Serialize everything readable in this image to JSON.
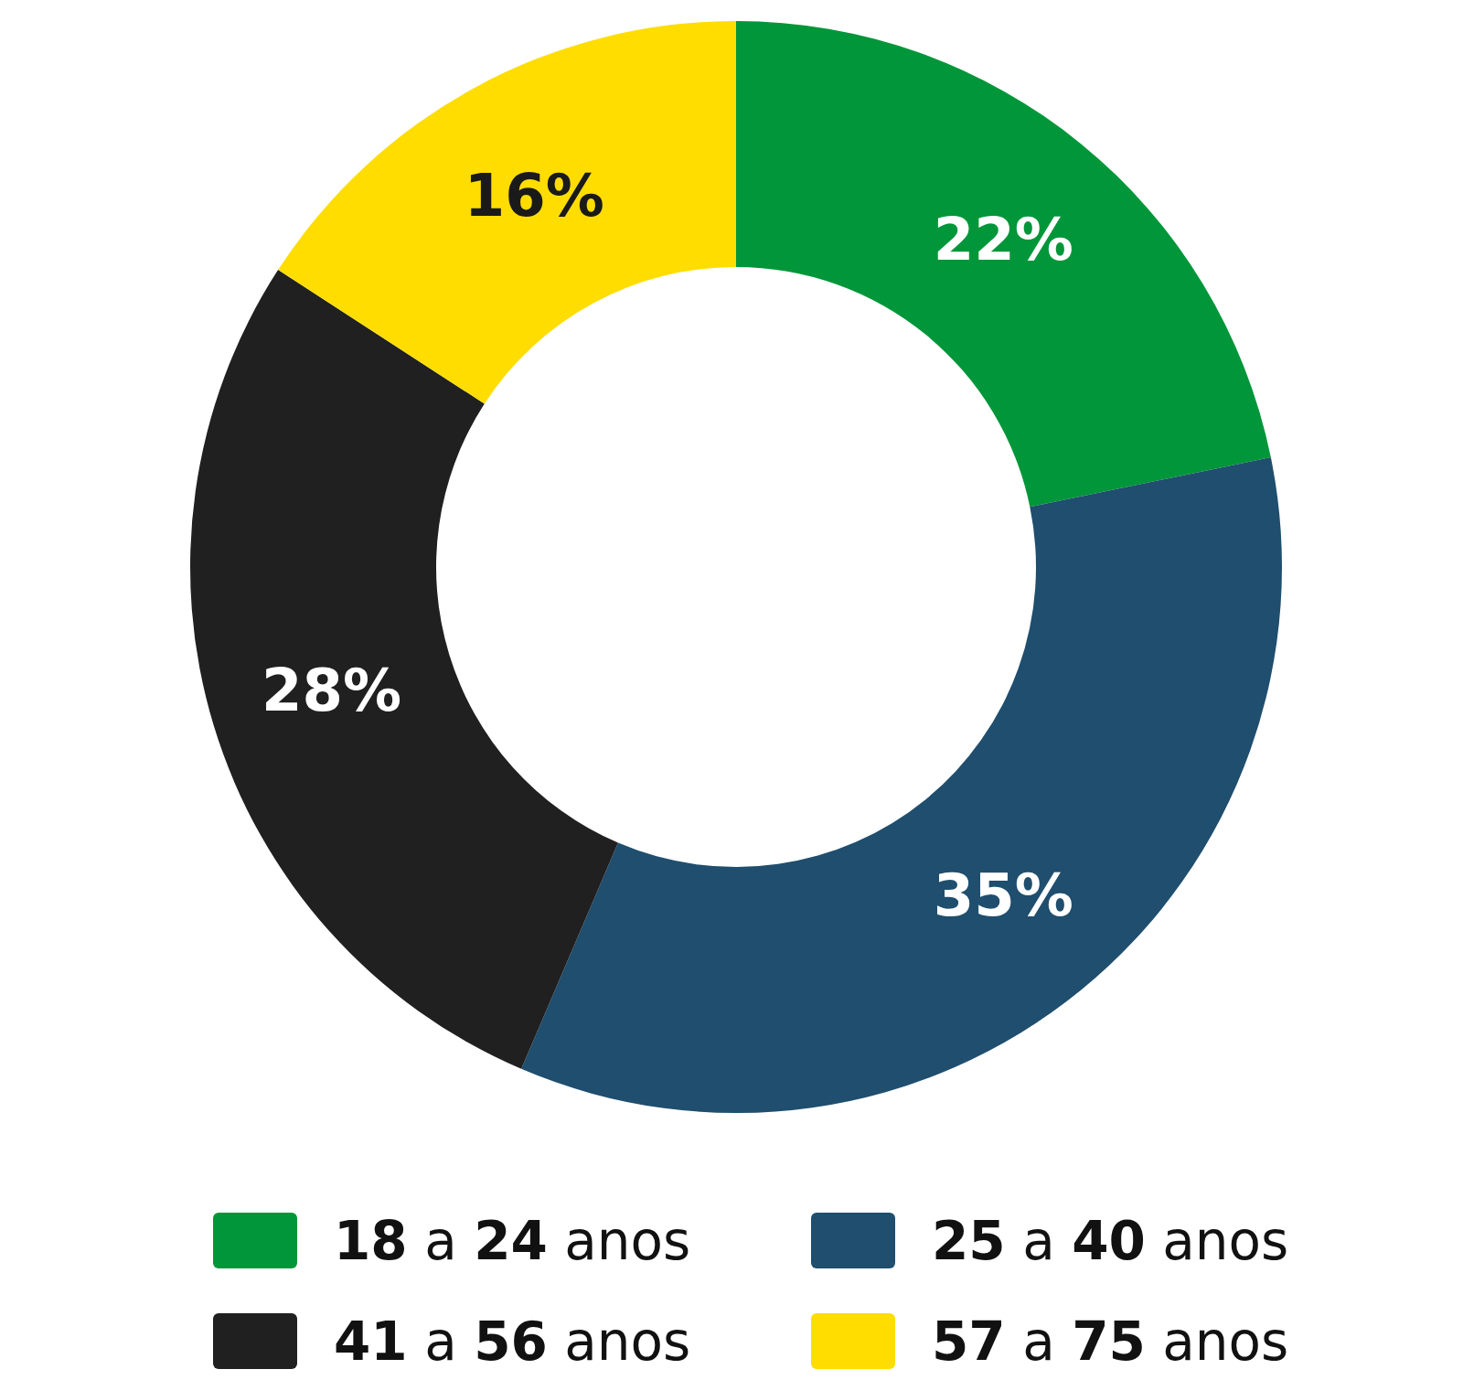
{
  "chart_data": {
    "type": "donut",
    "categories": [
      "18 a 24 anos",
      "25 a 40 anos",
      "41 a 56 anos",
      "57 a 75 anos"
    ],
    "values": [
      22,
      35,
      28,
      16
    ],
    "colors": [
      "#009639",
      "#1f4e6e",
      "#202020",
      "#ffdd00"
    ],
    "value_labels": [
      "22%",
      "35%",
      "28%",
      "16%"
    ],
    "legend": "bottom"
  }
}
